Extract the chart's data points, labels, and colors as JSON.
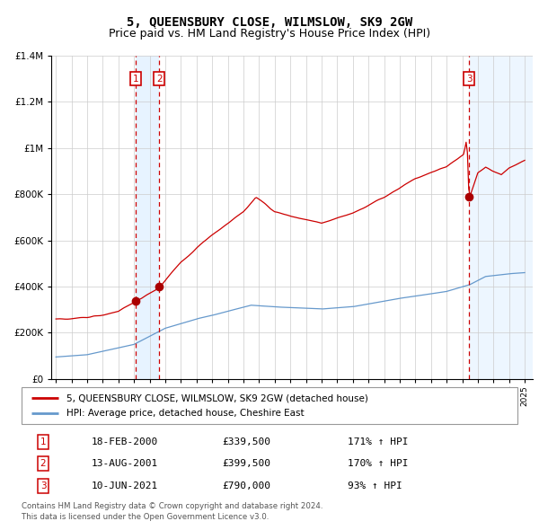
{
  "title": "5, QUEENSBURY CLOSE, WILMSLOW, SK9 2GW",
  "subtitle": "Price paid vs. HM Land Registry's House Price Index (HPI)",
  "red_label": "5, QUEENSBURY CLOSE, WILMSLOW, SK9 2GW (detached house)",
  "blue_label": "HPI: Average price, detached house, Cheshire East",
  "transactions": [
    {
      "num": 1,
      "date": "18-FEB-2000",
      "year": 2000.12,
      "price": 339500,
      "hpi_pct": "171%",
      "direction": "↑"
    },
    {
      "num": 2,
      "date": "13-AUG-2001",
      "year": 2001.62,
      "price": 399500,
      "hpi_pct": "170%",
      "direction": "↑"
    },
    {
      "num": 3,
      "date": "10-JUN-2021",
      "year": 2021.44,
      "price": 790000,
      "hpi_pct": "93%",
      "direction": "↑"
    }
  ],
  "footnote1": "Contains HM Land Registry data © Crown copyright and database right 2024.",
  "footnote2": "This data is licensed under the Open Government Licence v3.0.",
  "ylim": [
    0,
    1400000
  ],
  "yticks": [
    0,
    200000,
    400000,
    600000,
    800000,
    1000000,
    1200000,
    1400000
  ],
  "xmin": 1994.7,
  "xmax": 2025.5,
  "background_color": "#ffffff",
  "grid_color": "#cccccc",
  "red_line_color": "#cc0000",
  "blue_line_color": "#6699cc",
  "dot_color": "#aa0000",
  "vline_color": "#cc0000",
  "shade_color": "#ddeeff",
  "label_box_color": "#cc0000",
  "title_fontsize": 10,
  "subtitle_fontsize": 9
}
